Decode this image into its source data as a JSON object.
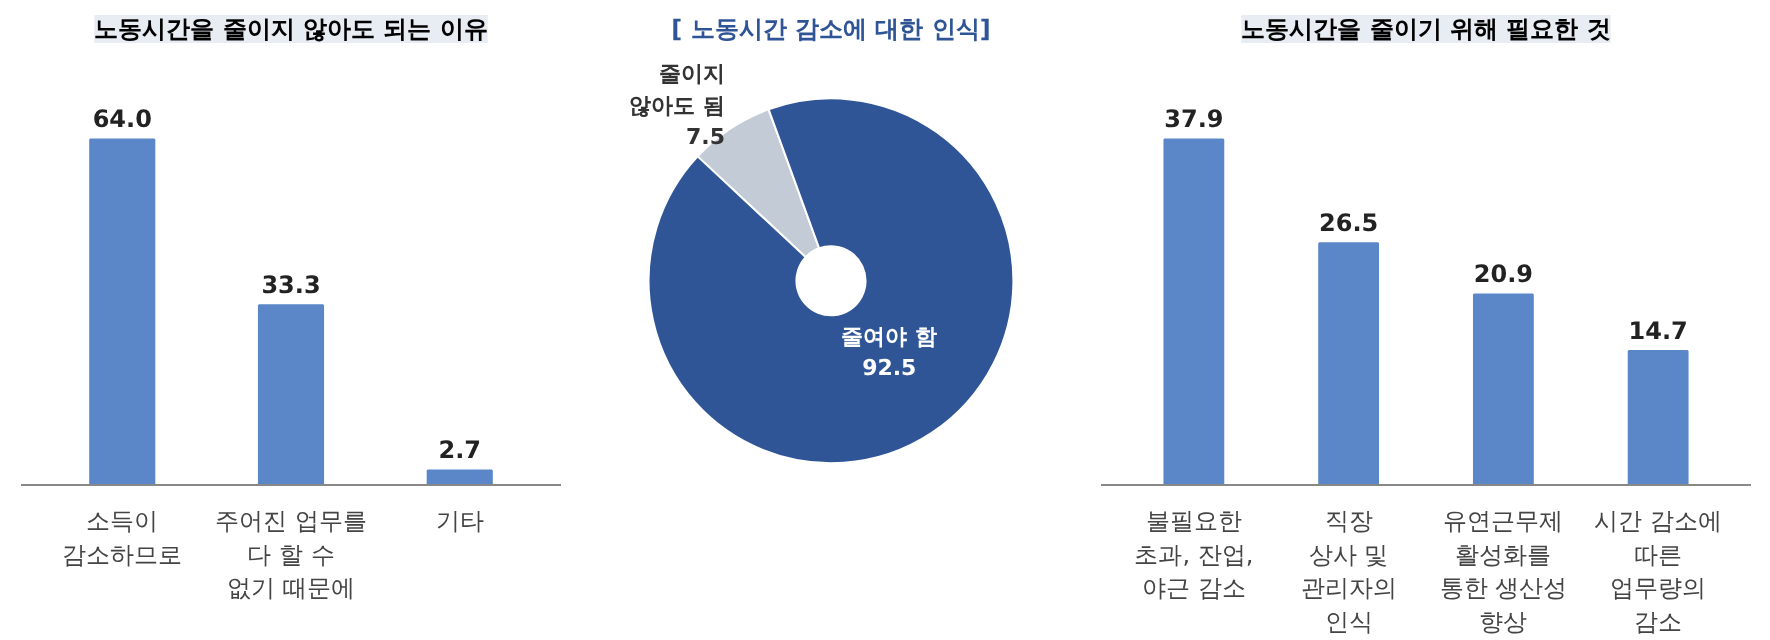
{
  "chart_data": [
    {
      "type": "bar",
      "title": "노동시간을 줄이지 않아도 되는 이유",
      "categories": [
        "소득이\n감소하므로",
        "주어진 업무를\n다 할 수\n없기 때문에",
        "기타"
      ],
      "values": [
        64.0,
        33.3,
        2.7
      ],
      "value_labels": [
        "64.0",
        "33.3",
        "2.7"
      ],
      "color": "#5b87c8"
    },
    {
      "type": "donut",
      "title": "[ 노동시간 감소에 대한 인식]",
      "categories": [
        "줄이지\n않아도 됨",
        "줄여야 함"
      ],
      "values": [
        7.5,
        92.5
      ],
      "value_labels": [
        "7.5",
        "92.5"
      ],
      "colors": [
        "#c3ccd6",
        "#2f5597"
      ]
    },
    {
      "type": "bar",
      "title": "노동시간을 줄이기 위해 필요한 것",
      "categories": [
        "불필요한\n초과, 잔업,\n야근 감소",
        "직장\n상사 및\n관리자의\n인식",
        "유연근무제\n활성화를\n통한 생산성\n향상",
        "시간 감소에\n따른\n업무량의\n감소"
      ],
      "values": [
        37.9,
        26.5,
        20.9,
        14.7
      ],
      "value_labels": [
        "37.9",
        "26.5",
        "20.9",
        "14.7"
      ],
      "color": "#5b87c8"
    }
  ]
}
